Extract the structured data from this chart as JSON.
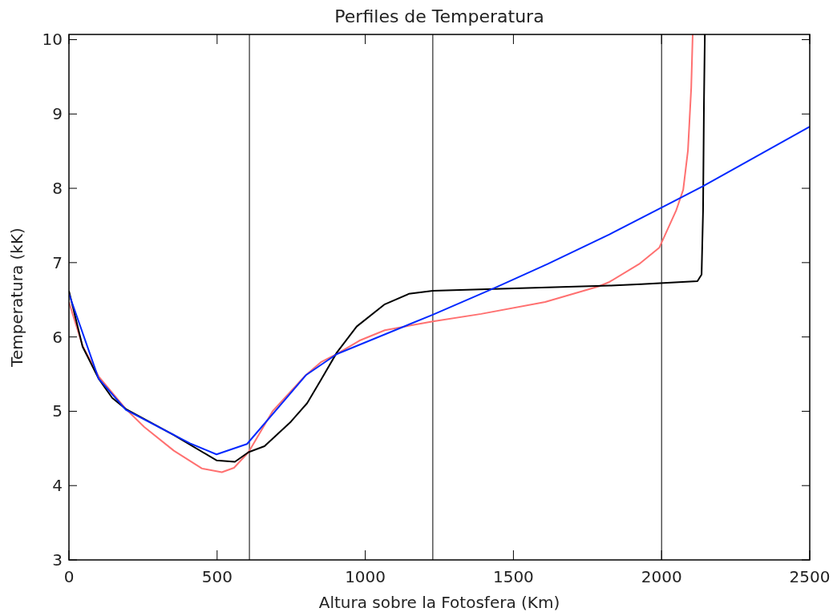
{
  "chart_data": {
    "type": "line",
    "title": "Perfiles de Temperatura",
    "xlabel": "Altura sobre la Fotosfera (Km)",
    "ylabel": "Temperatura (kK)",
    "xlim": [
      0,
      2500
    ],
    "xticks": [
      0,
      500,
      1000,
      1500,
      2000,
      2500
    ],
    "ylim": [
      3,
      10.07
    ],
    "yticks": [
      3,
      4,
      5,
      6,
      7,
      8,
      9,
      10
    ],
    "grid": false,
    "line_style": "solid",
    "series": [
      {
        "color": "#ff7070",
        "x": [
          0,
          46,
          100,
          192,
          254,
          354,
          449,
          516,
          557,
          606,
          687,
          795,
          850,
          904,
          980,
          1066,
          1228,
          1391,
          1607,
          1788,
          1824,
          1924,
          1992,
          2049,
          2073,
          2089,
          2100,
          2105
        ],
        "values": [
          6.47,
          5.88,
          5.47,
          5.03,
          4.79,
          4.47,
          4.23,
          4.18,
          4.24,
          4.45,
          5.0,
          5.47,
          5.66,
          5.77,
          5.95,
          6.09,
          6.21,
          6.31,
          6.47,
          6.68,
          6.74,
          6.98,
          7.2,
          7.7,
          7.98,
          8.51,
          9.35,
          10.07
        ]
      },
      {
        "color": "#000000",
        "x": [
          0,
          46,
          100,
          146,
          192,
          354,
          498,
          560,
          606,
          660,
          749,
          804,
          850,
          904,
          971,
          1066,
          1147,
          1228,
          1824,
          1932,
          2121,
          2135,
          2140,
          2143,
          2146
        ],
        "values": [
          6.62,
          5.87,
          5.44,
          5.18,
          5.03,
          4.68,
          4.34,
          4.32,
          4.45,
          4.53,
          4.86,
          5.11,
          5.42,
          5.79,
          6.14,
          6.44,
          6.58,
          6.62,
          6.69,
          6.71,
          6.75,
          6.84,
          7.7,
          9.14,
          10.07
        ]
      },
      {
        "color": "#0028ff",
        "x": [
          0,
          100,
          192,
          408,
          498,
          601,
          801,
          904,
          1228,
          1437,
          1615,
          1824,
          2000,
          2140,
          2500
        ],
        "values": [
          6.58,
          5.44,
          5.02,
          4.57,
          4.42,
          4.56,
          5.49,
          5.77,
          6.3,
          6.66,
          6.98,
          7.38,
          7.74,
          8.03,
          8.83
        ]
      }
    ],
    "ref_lines": [
      {
        "axis": "x",
        "value": 609,
        "color": "#000000"
      },
      {
        "axis": "x",
        "value": 1228,
        "color": "#000000"
      },
      {
        "axis": "x",
        "value": 2000,
        "color": "#000000"
      }
    ]
  }
}
